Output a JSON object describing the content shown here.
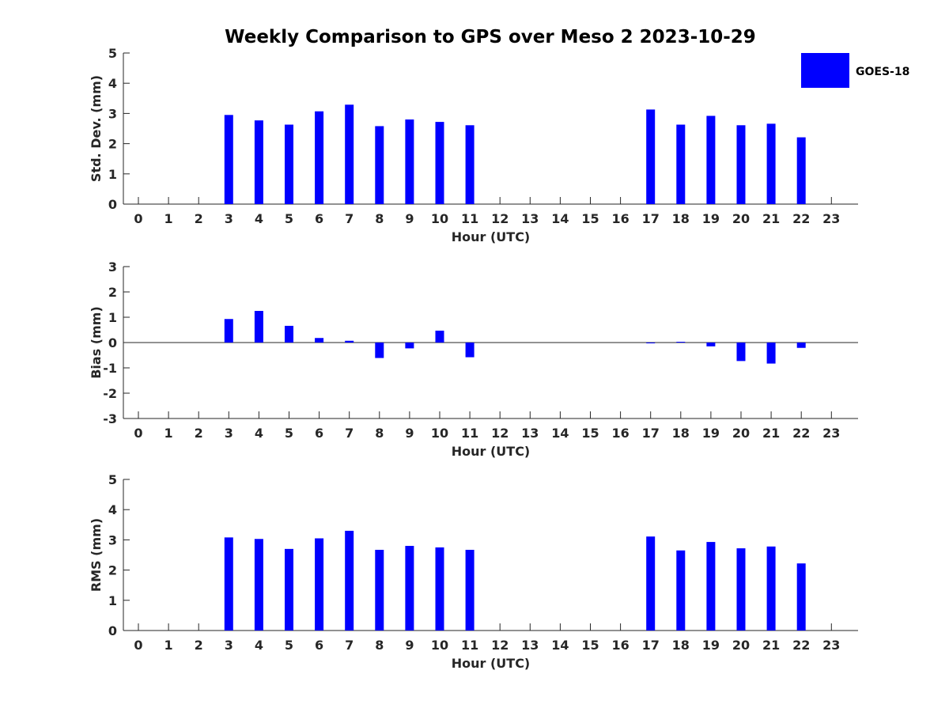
{
  "figure": {
    "title": "Weekly Comparison to GPS over Meso 2 2023-10-29",
    "legend_label": "GOES-18",
    "bar_color": "#0000ff"
  },
  "chart_data": [
    {
      "type": "bar",
      "title": "Weekly Comparison to GPS over Meso 2 2023-10-29",
      "xlabel": "Hour (UTC)",
      "ylabel": "Std. Dev. (mm)",
      "ylim": [
        0,
        5
      ],
      "yticks": [
        "0",
        "1",
        "2",
        "3",
        "4",
        "5"
      ],
      "categories": [
        "0",
        "1",
        "2",
        "3",
        "4",
        "5",
        "6",
        "7",
        "8",
        "9",
        "10",
        "11",
        "12",
        "13",
        "14",
        "15",
        "16",
        "17",
        "18",
        "19",
        "20",
        "21",
        "22",
        "23"
      ],
      "series": [
        {
          "name": "GOES-18",
          "values": [
            null,
            null,
            null,
            2.95,
            2.77,
            2.63,
            3.07,
            3.29,
            2.58,
            2.8,
            2.72,
            2.61,
            null,
            null,
            null,
            null,
            null,
            3.13,
            2.63,
            2.92,
            2.61,
            2.66,
            2.21,
            null
          ]
        }
      ],
      "legend": "top-right",
      "grid": false
    },
    {
      "type": "bar",
      "xlabel": "Hour (UTC)",
      "ylabel": "Bias (mm)",
      "ylim": [
        -3,
        3
      ],
      "yticks": [
        "-3",
        "-2",
        "-1",
        "0",
        "1",
        "2",
        "3"
      ],
      "categories": [
        "0",
        "1",
        "2",
        "3",
        "4",
        "5",
        "6",
        "7",
        "8",
        "9",
        "10",
        "11",
        "12",
        "13",
        "14",
        "15",
        "16",
        "17",
        "18",
        "19",
        "20",
        "21",
        "22",
        "23"
      ],
      "series": [
        {
          "name": "GOES-18",
          "values": [
            null,
            null,
            null,
            0.93,
            1.25,
            0.66,
            0.18,
            0.07,
            -0.61,
            -0.23,
            0.47,
            -0.58,
            null,
            null,
            null,
            null,
            null,
            -0.02,
            0.03,
            -0.15,
            -0.73,
            -0.83,
            -0.21,
            null
          ]
        }
      ],
      "grid": false
    },
    {
      "type": "bar",
      "xlabel": "Hour (UTC)",
      "ylabel": "RMS (mm)",
      "ylim": [
        0,
        5
      ],
      "yticks": [
        "0",
        "1",
        "2",
        "3",
        "4",
        "5"
      ],
      "categories": [
        "0",
        "1",
        "2",
        "3",
        "4",
        "5",
        "6",
        "7",
        "8",
        "9",
        "10",
        "11",
        "12",
        "13",
        "14",
        "15",
        "16",
        "17",
        "18",
        "19",
        "20",
        "21",
        "22",
        "23"
      ],
      "series": [
        {
          "name": "GOES-18",
          "values": [
            null,
            null,
            null,
            3.08,
            3.03,
            2.7,
            3.05,
            3.3,
            2.67,
            2.8,
            2.75,
            2.67,
            null,
            null,
            null,
            null,
            null,
            3.11,
            2.65,
            2.93,
            2.72,
            2.78,
            2.22,
            null
          ]
        }
      ],
      "grid": false
    }
  ]
}
